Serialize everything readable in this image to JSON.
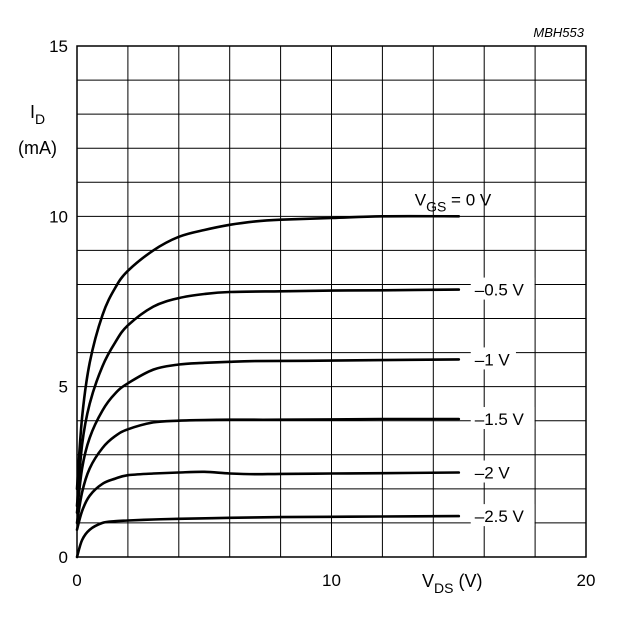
{
  "chart_data": {
    "type": "line",
    "code": "MBH553",
    "xlim": [
      0,
      20
    ],
    "ylim": [
      0,
      15
    ],
    "x_ticks": [
      "0",
      "10",
      "20"
    ],
    "y_ticks": [
      "0",
      "5",
      "10",
      "15"
    ],
    "xlabel": {
      "main": "V",
      "sub": "DS",
      "unit": " (V)"
    },
    "ylabel": {
      "main": "I",
      "sub": "D",
      "unit": "(mA)"
    },
    "curve_label_prefix": {
      "main": "V",
      "sub": "GS",
      "text": " = 0 V"
    },
    "grid": true,
    "series": [
      {
        "name": "0 V",
        "label": "V_GS = 0 V",
        "x": [
          0,
          0.2,
          0.5,
          1,
          1.5,
          2,
          3,
          4,
          5,
          6,
          7,
          8,
          10,
          12,
          15
        ],
        "y": [
          2,
          4.1,
          5.7,
          7.1,
          7.9,
          8.4,
          9.0,
          9.4,
          9.6,
          9.75,
          9.85,
          9.9,
          9.95,
          10.0,
          10.0
        ]
      },
      {
        "name": "-0.5 V",
        "label": "–0.5 V",
        "x": [
          0,
          0.2,
          0.5,
          1,
          1.5,
          2,
          3,
          4,
          5,
          6,
          8,
          10,
          12,
          15
        ],
        "y": [
          1.5,
          3.3,
          4.5,
          5.6,
          6.3,
          6.8,
          7.35,
          7.6,
          7.72,
          7.78,
          7.8,
          7.82,
          7.83,
          7.85
        ]
      },
      {
        "name": "-1 V",
        "label": "–1 V",
        "x": [
          0,
          0.2,
          0.5,
          1,
          1.5,
          2,
          3,
          4,
          5,
          6,
          7,
          9,
          12,
          15
        ],
        "y": [
          1.3,
          2.6,
          3.5,
          4.3,
          4.8,
          5.1,
          5.5,
          5.65,
          5.7,
          5.73,
          5.75,
          5.76,
          5.78,
          5.8
        ]
      },
      {
        "name": "-1.5 V",
        "label": "–1.5 V",
        "x": [
          0,
          0.2,
          0.5,
          1,
          1.5,
          2,
          3,
          4,
          5,
          6,
          8,
          10,
          12,
          15
        ],
        "y": [
          1.0,
          1.9,
          2.6,
          3.2,
          3.55,
          3.75,
          3.95,
          4.0,
          4.02,
          4.03,
          4.03,
          4.04,
          4.05,
          4.05
        ]
      },
      {
        "name": "-2 V",
        "label": "–2 V",
        "x": [
          0,
          0.2,
          0.5,
          1,
          1.5,
          2,
          3,
          4,
          5,
          6,
          7,
          8,
          10,
          12,
          15
        ],
        "y": [
          0.8,
          1.35,
          1.8,
          2.15,
          2.3,
          2.4,
          2.45,
          2.48,
          2.5,
          2.45,
          2.43,
          2.44,
          2.45,
          2.46,
          2.48
        ]
      },
      {
        "name": "-2.5 V",
        "label": "–2.5 V",
        "x": [
          0,
          0.2,
          0.5,
          1,
          1.5,
          2,
          3,
          4,
          6,
          8,
          10,
          12,
          15
        ],
        "y": [
          0,
          0.5,
          0.8,
          1.0,
          1.05,
          1.07,
          1.1,
          1.12,
          1.15,
          1.17,
          1.18,
          1.19,
          1.2
        ]
      }
    ]
  }
}
